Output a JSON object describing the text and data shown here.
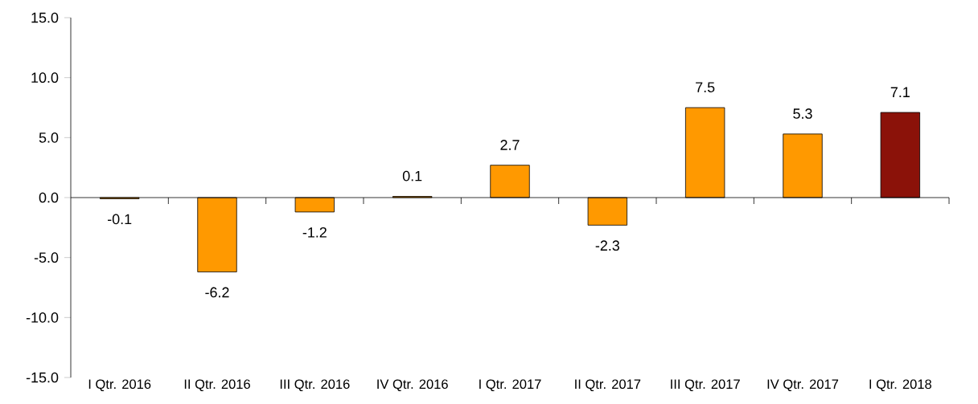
{
  "chart_data": {
    "type": "bar",
    "categories": [
      "I Qtr. 2016",
      "II Qtr. 2016",
      "III Qtr. 2016",
      "IV Qtr. 2016",
      "I Qtr. 2017",
      "II Qtr. 2017",
      "III Qtr. 2017",
      "IV Qtr. 2017",
      "I Qtr. 2018"
    ],
    "values": [
      -0.1,
      -6.2,
      -1.2,
      0.1,
      2.7,
      -2.3,
      7.5,
      5.3,
      7.1
    ],
    "colors": [
      "#ff9900",
      "#ff9900",
      "#ff9900",
      "#ff9900",
      "#ff9900",
      "#ff9900",
      "#ff9900",
      "#ff9900",
      "#8b1209"
    ],
    "ylim": [
      -15,
      15
    ],
    "yticks": [
      {
        "value": -15,
        "label": "-15.0"
      },
      {
        "value": -10,
        "label": "-10.0"
      },
      {
        "value": -5,
        "label": "-5.0"
      },
      {
        "value": 0,
        "label": "0.0"
      },
      {
        "value": 5,
        "label": "5.0"
      },
      {
        "value": 10,
        "label": "10.0"
      },
      {
        "value": 15,
        "label": "15.0"
      }
    ],
    "data_labels": true
  }
}
